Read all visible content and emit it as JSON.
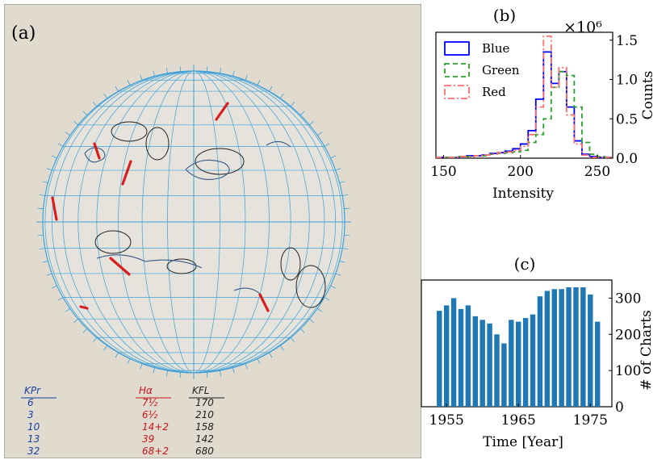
{
  "panel_a": {
    "label": "(a)",
    "notes_left": [
      "KPr",
      "6",
      "3",
      "10",
      "13",
      "32"
    ],
    "notes_mid": [
      "Hα",
      "7½",
      "6½",
      "14+2",
      "39",
      "68+2"
    ],
    "notes_right": [
      "KFL",
      "170",
      "210",
      "158",
      "142",
      "680"
    ]
  },
  "chart_data": [
    {
      "panel": "(b)",
      "type": "histogram",
      "xlabel": "Intensity",
      "ylabel": "Counts",
      "y_multiplier": "×10⁶",
      "xlim": [
        145,
        260
      ],
      "ylim": [
        0,
        1.6
      ],
      "xticks": [
        150,
        200,
        250
      ],
      "yticks": [
        0.0,
        0.5,
        1.0,
        1.5
      ],
      "bin_edges": [
        145,
        150,
        155,
        160,
        165,
        170,
        175,
        180,
        185,
        190,
        195,
        200,
        205,
        210,
        215,
        220,
        225,
        230,
        235,
        240,
        245,
        250,
        255,
        260
      ],
      "legend_position": "top-left",
      "series": [
        {
          "name": "Blue",
          "color": "#0000ff",
          "dash": "",
          "counts": [
            0.01,
            0.01,
            0.01,
            0.02,
            0.03,
            0.03,
            0.04,
            0.06,
            0.07,
            0.09,
            0.12,
            0.18,
            0.35,
            0.75,
            1.35,
            0.95,
            1.1,
            0.65,
            0.22,
            0.05,
            0.02,
            0.01,
            0.01
          ]
        },
        {
          "name": "Green",
          "color": "#2ca02c",
          "dash": "6,4",
          "counts": [
            0.01,
            0.01,
            0.01,
            0.02,
            0.02,
            0.03,
            0.03,
            0.05,
            0.06,
            0.07,
            0.08,
            0.1,
            0.2,
            0.3,
            0.5,
            0.9,
            1.1,
            1.05,
            0.65,
            0.2,
            0.05,
            0.02,
            0.01
          ]
        },
        {
          "name": "Red",
          "color": "#ff6f6f",
          "dash": "8,3,2,3",
          "counts": [
            0.01,
            0.01,
            0.01,
            0.02,
            0.02,
            0.03,
            0.04,
            0.05,
            0.07,
            0.08,
            0.1,
            0.15,
            0.3,
            0.65,
            1.55,
            0.9,
            1.15,
            0.55,
            0.18,
            0.04,
            0.01,
            0.01,
            0.01
          ]
        }
      ]
    },
    {
      "panel": "(c)",
      "type": "bar",
      "xlabel": "Time [Year]",
      "ylabel": "# of Charts",
      "xlim": [
        1951.5,
        1978
      ],
      "ylim": [
        0,
        350
      ],
      "xticks": [
        1955,
        1965,
        1975
      ],
      "yticks": [
        0,
        100,
        200,
        300
      ],
      "color": "#1f77b4",
      "years": [
        1954,
        1955,
        1956,
        1957,
        1958,
        1959,
        1960,
        1961,
        1962,
        1963,
        1964,
        1965,
        1966,
        1967,
        1968,
        1969,
        1970,
        1971,
        1972,
        1973,
        1974,
        1975,
        1976
      ],
      "values": [
        265,
        280,
        300,
        270,
        280,
        250,
        240,
        230,
        200,
        175,
        240,
        235,
        245,
        255,
        305,
        320,
        325,
        325,
        330,
        330,
        330,
        310,
        235
      ]
    }
  ]
}
